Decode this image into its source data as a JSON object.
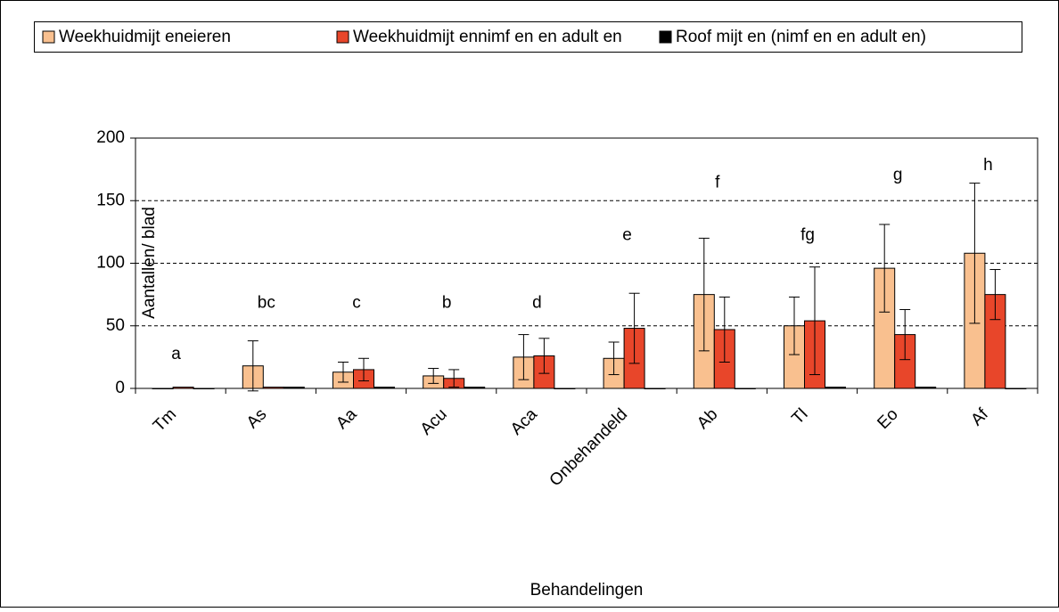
{
  "chart_data": {
    "type": "bar",
    "categories": [
      "Tm",
      "As",
      "Aa",
      "Acu",
      "Aca",
      "Onbehandeld",
      "Ab",
      "Tl",
      "Eo",
      "Af"
    ],
    "series": [
      {
        "name": "Weekhuidmijt eneieren",
        "color": "#f9c08f",
        "values": [
          0,
          18,
          13,
          10,
          25,
          24,
          75,
          50,
          96,
          108
        ],
        "errors": [
          null,
          20,
          8,
          6,
          18,
          13,
          45,
          23,
          35,
          56
        ]
      },
      {
        "name": "Weekhuidmijt ennimf en en adult en",
        "color": "#e8462a",
        "values": [
          1,
          1,
          15,
          8,
          26,
          48,
          47,
          54,
          43,
          75
        ],
        "errors": [
          null,
          null,
          9,
          7,
          14,
          28,
          26,
          43,
          20,
          20
        ]
      },
      {
        "name": "Roof mijt en (nimf en en adult en)",
        "color": "#000000",
        "values": [
          0,
          1,
          1,
          1,
          0,
          0,
          0,
          1,
          1,
          0
        ],
        "errors": [
          null,
          null,
          null,
          null,
          null,
          null,
          null,
          null,
          null,
          null
        ]
      }
    ],
    "annotations": [
      {
        "text": "a",
        "y": 27
      },
      {
        "text": "bc",
        "y": 68
      },
      {
        "text": "c",
        "y": 68
      },
      {
        "text": "b",
        "y": 68
      },
      {
        "text": "d",
        "y": 68
      },
      {
        "text": "e",
        "y": 122
      },
      {
        "text": "f",
        "y": 164
      },
      {
        "text": "fg",
        "y": 122
      },
      {
        "text": "g",
        "y": 170
      },
      {
        "text": "h",
        "y": 178
      }
    ],
    "ylabel": "Aantallen/ blad",
    "xlabel": "Behandelingen",
    "ylim": [
      0,
      200
    ],
    "yticks": [
      0,
      50,
      100,
      150,
      200
    ],
    "grid": true,
    "legend": "top"
  }
}
